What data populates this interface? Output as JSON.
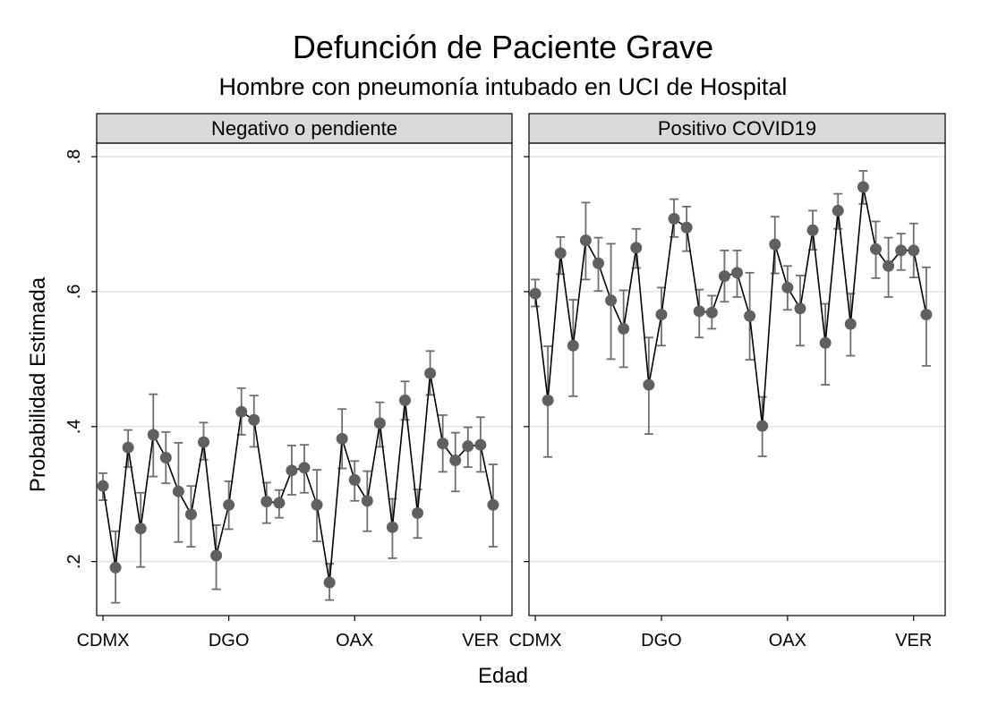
{
  "title": "Defunción de Paciente Grave",
  "subtitle": "Hombre con pneumonía intubado en UCI de Hospital",
  "colors": {
    "marker": "#606060",
    "line": "#000000",
    "errorbar": "#6e6e6e",
    "strip": "#d9d9d9",
    "grid": "#e3e3e3",
    "frame": "#000000"
  },
  "chart_data": {
    "type": "scatter",
    "xlabel": "Edad",
    "ylabel": "Probabilidad Estimada",
    "ylim": [
      0.12,
      0.82
    ],
    "yticks": [
      0.2,
      0.4,
      0.6,
      0.8
    ],
    "ytick_labels": [
      ".2",
      ".4",
      ".6",
      ".8"
    ],
    "xlim": [
      0.5,
      33.5
    ],
    "xticks": [
      1,
      11,
      21,
      31
    ],
    "xtick_labels": [
      "CDMX",
      "DGO",
      "OAX",
      "VER"
    ],
    "grid": true,
    "panels": [
      {
        "label": "Negativo o pendiente",
        "x": [
          1,
          2,
          3,
          4,
          5,
          6,
          7,
          8,
          9,
          10,
          11,
          12,
          13,
          14,
          15,
          16,
          17,
          18,
          19,
          20,
          21,
          22,
          23,
          24,
          25,
          26,
          27,
          28,
          29,
          30,
          31,
          32
        ],
        "y": [
          0.312,
          0.191,
          0.369,
          0.249,
          0.388,
          0.354,
          0.304,
          0.27,
          0.377,
          0.209,
          0.284,
          0.422,
          0.41,
          0.289,
          0.287,
          0.335,
          0.339,
          0.284,
          0.169,
          0.382,
          0.321,
          0.29,
          0.405,
          0.251,
          0.439,
          0.272,
          0.479,
          0.375,
          0.35,
          0.371,
          0.373,
          0.284
        ],
        "y_low": [
          0.291,
          0.139,
          0.34,
          0.192,
          0.326,
          0.316,
          0.229,
          0.222,
          0.351,
          0.159,
          0.248,
          0.388,
          0.37,
          0.257,
          0.265,
          0.299,
          0.302,
          0.23,
          0.143,
          0.338,
          0.29,
          0.245,
          0.37,
          0.205,
          0.41,
          0.235,
          0.447,
          0.333,
          0.304,
          0.34,
          0.333,
          0.222
        ],
        "y_high": [
          0.331,
          0.245,
          0.395,
          0.302,
          0.448,
          0.392,
          0.376,
          0.312,
          0.406,
          0.254,
          0.319,
          0.457,
          0.446,
          0.317,
          0.306,
          0.372,
          0.373,
          0.336,
          0.197,
          0.426,
          0.349,
          0.334,
          0.436,
          0.293,
          0.467,
          0.307,
          0.512,
          0.417,
          0.391,
          0.399,
          0.414,
          0.344
        ]
      },
      {
        "label": "Positivo COVID19",
        "x": [
          1,
          2,
          3,
          4,
          5,
          6,
          7,
          8,
          9,
          10,
          11,
          12,
          13,
          14,
          15,
          16,
          17,
          18,
          19,
          20,
          21,
          22,
          23,
          24,
          25,
          26,
          27,
          28,
          29,
          30,
          31,
          32
        ],
        "y": [
          0.597,
          0.439,
          0.657,
          0.52,
          0.676,
          0.642,
          0.587,
          0.545,
          0.665,
          0.462,
          0.566,
          0.708,
          0.695,
          0.571,
          0.569,
          0.623,
          0.628,
          0.564,
          0.401,
          0.67,
          0.606,
          0.575,
          0.691,
          0.524,
          0.72,
          0.552,
          0.755,
          0.663,
          0.638,
          0.661,
          0.661,
          0.566
        ],
        "y_low": [
          0.578,
          0.355,
          0.626,
          0.445,
          0.618,
          0.601,
          0.5,
          0.488,
          0.635,
          0.389,
          0.52,
          0.681,
          0.66,
          0.532,
          0.545,
          0.585,
          0.592,
          0.499,
          0.356,
          0.627,
          0.573,
          0.52,
          0.662,
          0.462,
          0.693,
          0.505,
          0.73,
          0.62,
          0.592,
          0.632,
          0.621,
          0.49
        ],
        "y_high": [
          0.618,
          0.519,
          0.681,
          0.588,
          0.732,
          0.68,
          0.671,
          0.602,
          0.693,
          0.532,
          0.606,
          0.737,
          0.726,
          0.603,
          0.594,
          0.661,
          0.661,
          0.628,
          0.444,
          0.711,
          0.638,
          0.624,
          0.72,
          0.582,
          0.745,
          0.597,
          0.779,
          0.704,
          0.68,
          0.686,
          0.701,
          0.636
        ]
      }
    ]
  }
}
